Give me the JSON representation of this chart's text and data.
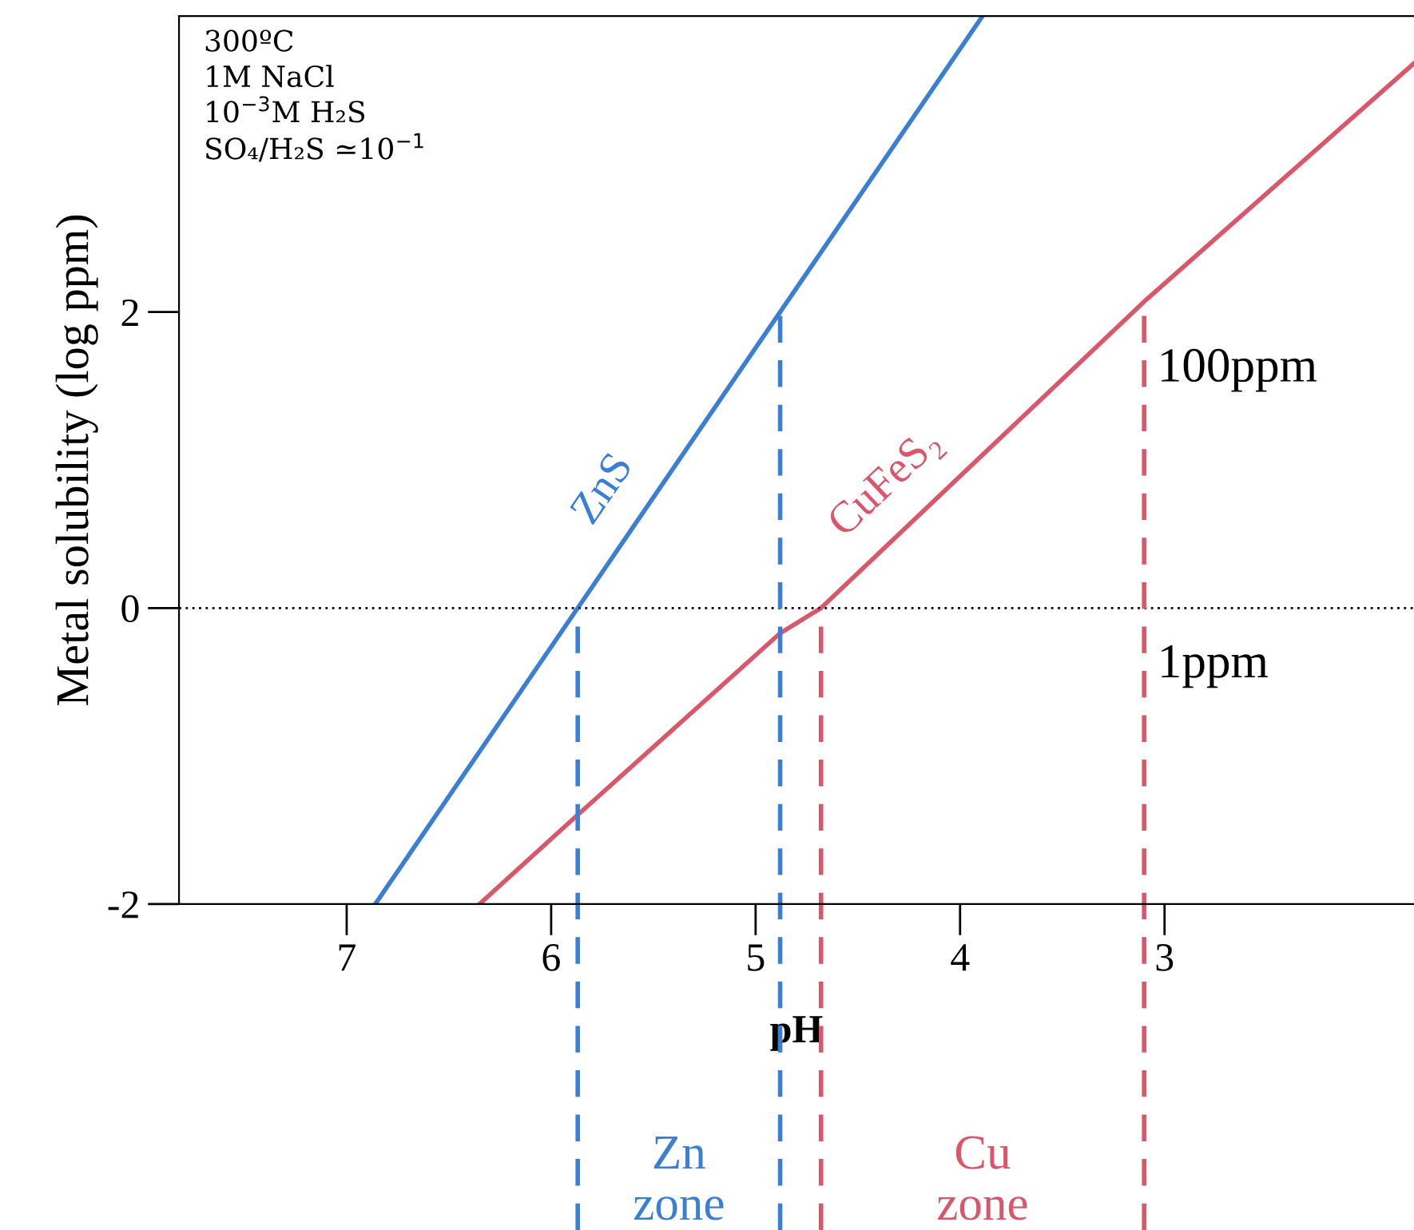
{
  "chart_data": {
    "type": "line",
    "xlabel": "pH",
    "ylabel": "Metal solubility (log ppm)",
    "xlim": [
      7.82,
      1.78
    ],
    "ylim": [
      -2,
      4
    ],
    "xticks": [
      7,
      6,
      5,
      4,
      3
    ],
    "yticks": [
      {
        "value": -2,
        "label": "-2"
      },
      0,
      2
    ],
    "series": [
      {
        "name": "ZnS",
        "color": "#3b7fd4",
        "x": [
          6.86,
          5.87,
          4.88,
          3.89
        ],
        "values": [
          -2,
          0,
          2,
          4
        ]
      },
      {
        "name": "CuFeS₂",
        "color": "#d9566b",
        "x": [
          6.35,
          5.88,
          4.88,
          4.68,
          3.1,
          1.78
        ],
        "values": [
          -2,
          -1.41,
          -0.17,
          0,
          2.07,
          3.68
        ]
      }
    ],
    "ref_lines": [
      {
        "axis": "y",
        "value": 0,
        "color": "#000000",
        "line_style": "dotted"
      },
      {
        "axis": "x",
        "value": 5.87,
        "color": "#3b7fd4",
        "line_style": "dashed"
      },
      {
        "axis": "x",
        "value": 4.88,
        "color": "#3b7fd4",
        "line_style": "dashed"
      },
      {
        "axis": "x",
        "value": 4.68,
        "color": "#d9566b",
        "line_style": "dashed"
      },
      {
        "axis": "x",
        "value": 3.1,
        "color": "#d9566b",
        "line_style": "dashed"
      }
    ],
    "annotations": [
      "300ºC\n1M NaCl\n10$^{−3}$M H₂S\nSO₄/H₂S ≃10$^{−1}$",
      {
        "text": "100ppm",
        "x": 3.1,
        "y": 2
      },
      {
        "text": "1ppm",
        "x": 3.1,
        "y": 0
      },
      "Zn\nzone",
      "Cu\nzone"
    ],
    "grid": false,
    "legend": false
  }
}
